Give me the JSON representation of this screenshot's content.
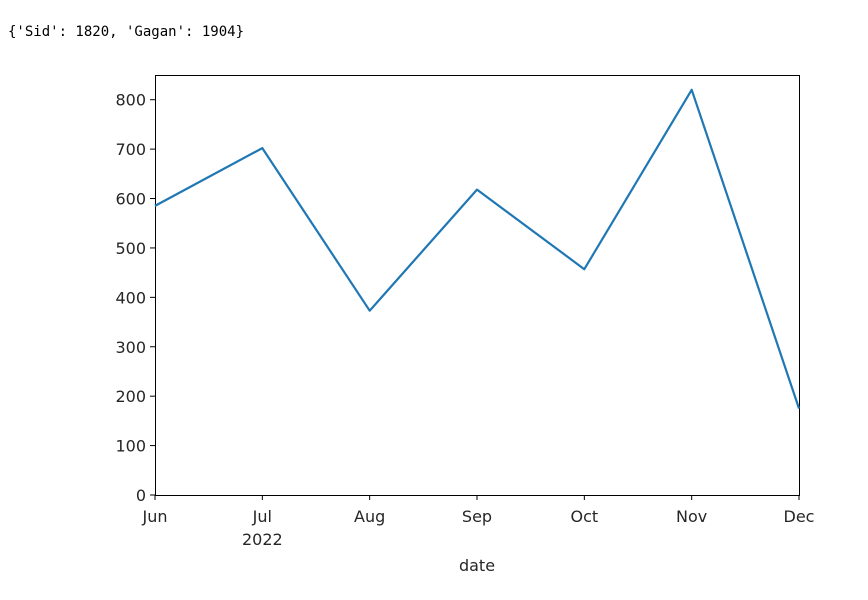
{
  "output_text": "{'Sid': 1820, 'Gagan': 1904}",
  "chart_data": {
    "type": "line",
    "x": [
      "2022-06",
      "2022-07",
      "2022-08",
      "2022-09",
      "2022-10",
      "2022-11",
      "2022-12"
    ],
    "x_tick_labels": [
      "Jun",
      "Jul",
      "Aug",
      "Sep",
      "Oct",
      "Nov",
      "Dec"
    ],
    "x_year_label": "2022",
    "series": [
      {
        "values": [
          585,
          702,
          373,
          618,
          457,
          820,
          175
        ],
        "color": "#1f77b4"
      }
    ],
    "xlabel": "date",
    "ylabel": "",
    "title": "",
    "ylim": [
      0,
      850
    ],
    "y_ticks": [
      0,
      100,
      200,
      300,
      400,
      500,
      600,
      700,
      800
    ],
    "grid": false,
    "legend": "none"
  }
}
